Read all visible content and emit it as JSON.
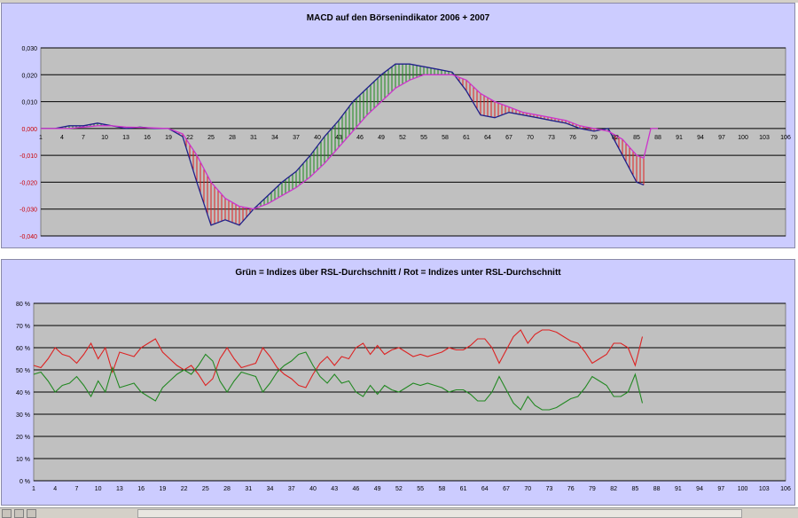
{
  "chart_data": [
    {
      "type": "bar",
      "title": "MACD auf den Börsenindikator 2006 + 2007",
      "x_ticks": [
        "1",
        "4",
        "7",
        "10",
        "13",
        "16",
        "19",
        "22",
        "25",
        "28",
        "31",
        "34",
        "37",
        "40",
        "43",
        "46",
        "49",
        "52",
        "55",
        "58",
        "61",
        "64",
        "67",
        "70",
        "73",
        "76",
        "79",
        "82",
        "85",
        "88",
        "91",
        "94",
        "97",
        "100",
        "103",
        "106"
      ],
      "y_ticks": [
        "0,030",
        "0,020",
        "0,010",
        "0,000",
        "-0,010",
        "-0,020",
        "-0,030",
        "-0,040"
      ],
      "ylim": [
        -0.04,
        0.03
      ],
      "xlim": [
        1,
        106
      ],
      "grid": true,
      "series": [
        {
          "color": "#20208a",
          "x": [
            1,
            3,
            5,
            7,
            9,
            11,
            13,
            15,
            17,
            19,
            21,
            23,
            25,
            27,
            29,
            31,
            33,
            35,
            37,
            39,
            41,
            43,
            45,
            47,
            49,
            51,
            53,
            55,
            57,
            59,
            61,
            63,
            65,
            67,
            69,
            71,
            73,
            75,
            77,
            79,
            81,
            83,
            85,
            86
          ],
          "values": [
            0,
            0,
            0.001,
            0.001,
            0.002,
            0.001,
            0,
            0.0005,
            0,
            0,
            -0.003,
            -0.02,
            -0.036,
            -0.034,
            -0.036,
            -0.03,
            -0.025,
            -0.02,
            -0.016,
            -0.01,
            -0.003,
            0.003,
            0.01,
            0.015,
            0.02,
            0.024,
            0.024,
            0.023,
            0.022,
            0.021,
            0.014,
            0.005,
            0.004,
            0.006,
            0.005,
            0.004,
            0.003,
            0.002,
            0,
            -0.001,
            0,
            -0.01,
            -0.02,
            -0.021
          ]
        },
        {
          "color": "#cc33cc",
          "x": [
            1,
            3,
            5,
            7,
            9,
            11,
            13,
            15,
            17,
            19,
            21,
            23,
            25,
            27,
            29,
            31,
            33,
            35,
            37,
            39,
            41,
            43,
            45,
            47,
            49,
            51,
            53,
            55,
            57,
            59,
            61,
            63,
            65,
            67,
            69,
            71,
            73,
            75,
            77,
            79,
            81,
            83,
            85,
            86,
            87,
            88
          ],
          "values": [
            0,
            0,
            0,
            0.0005,
            0.001,
            0.001,
            0.0005,
            0.0004,
            0.0002,
            0,
            -0.002,
            -0.01,
            -0.02,
            -0.026,
            -0.029,
            -0.03,
            -0.028,
            -0.025,
            -0.022,
            -0.018,
            -0.013,
            -0.007,
            -0.001,
            0.005,
            0.01,
            0.015,
            0.018,
            0.02,
            0.02,
            0.02,
            0.018,
            0.013,
            0.01,
            0.008,
            0.006,
            0.005,
            0.004,
            0.003,
            0.001,
            0,
            -0.001,
            -0.004,
            -0.01,
            -0.011,
            0,
            0
          ]
        }
      ]
    },
    {
      "type": "line",
      "title": "Grün = Indizes über RSL-Durchschnitt / Rot = Indizes unter RSL-Durchschnitt",
      "x_ticks": [
        "1",
        "4",
        "7",
        "10",
        "13",
        "16",
        "19",
        "22",
        "25",
        "28",
        "31",
        "34",
        "37",
        "40",
        "43",
        "46",
        "49",
        "52",
        "55",
        "58",
        "61",
        "64",
        "67",
        "70",
        "73",
        "76",
        "79",
        "82",
        "85",
        "88",
        "91",
        "94",
        "97",
        "100",
        "103",
        "106"
      ],
      "y_ticks": [
        "80 %",
        "70 %",
        "60 %",
        "50 %",
        "40 %",
        "30 %",
        "20 %",
        "10 %",
        "0 %"
      ],
      "ylim": [
        0,
        80
      ],
      "xlim": [
        1,
        106
      ],
      "grid": true,
      "series": [
        {
          "color": "#dd2222",
          "x": [
            1,
            2,
            3,
            4,
            5,
            6,
            7,
            8,
            9,
            10,
            11,
            12,
            13,
            14,
            15,
            16,
            17,
            18,
            19,
            20,
            21,
            22,
            23,
            24,
            25,
            26,
            27,
            28,
            29,
            30,
            31,
            32,
            33,
            34,
            35,
            36,
            37,
            38,
            39,
            40,
            41,
            42,
            43,
            44,
            45,
            46,
            47,
            48,
            49,
            50,
            51,
            52,
            53,
            54,
            55,
            56,
            57,
            58,
            59,
            60,
            61,
            62,
            63,
            64,
            65,
            66,
            67,
            68,
            69,
            70,
            71,
            72,
            73,
            74,
            75,
            76,
            77,
            78,
            79,
            80,
            81,
            82,
            83,
            84,
            85,
            86
          ],
          "values": [
            52,
            51,
            55,
            60,
            57,
            56,
            53,
            57,
            62,
            55,
            60,
            49,
            58,
            57,
            56,
            60,
            62,
            64,
            58,
            55,
            52,
            50,
            52,
            48,
            43,
            46,
            55,
            60,
            55,
            51,
            52,
            53,
            60,
            56,
            51,
            48,
            46,
            43,
            42,
            48,
            53,
            56,
            52,
            56,
            55,
            60,
            62,
            57,
            61,
            57,
            59,
            60,
            58,
            56,
            57,
            56,
            57,
            58,
            60,
            59,
            59,
            61,
            64,
            64,
            60,
            53,
            59,
            65,
            68,
            62,
            66,
            68,
            68,
            67,
            65,
            63,
            62,
            58,
            53,
            55,
            57,
            62,
            62,
            60,
            52,
            65
          ]
        },
        {
          "color": "#228822",
          "x": [
            1,
            2,
            3,
            4,
            5,
            6,
            7,
            8,
            9,
            10,
            11,
            12,
            13,
            14,
            15,
            16,
            17,
            18,
            19,
            20,
            21,
            22,
            23,
            24,
            25,
            26,
            27,
            28,
            29,
            30,
            31,
            32,
            33,
            34,
            35,
            36,
            37,
            38,
            39,
            40,
            41,
            42,
            43,
            44,
            45,
            46,
            47,
            48,
            49,
            50,
            51,
            52,
            53,
            54,
            55,
            56,
            57,
            58,
            59,
            60,
            61,
            62,
            63,
            64,
            65,
            66,
            67,
            68,
            69,
            70,
            71,
            72,
            73,
            74,
            75,
            76,
            77,
            78,
            79,
            80,
            81,
            82,
            83,
            84,
            85,
            86
          ],
          "values": [
            48,
            49,
            45,
            40,
            43,
            44,
            47,
            43,
            38,
            45,
            40,
            51,
            42,
            43,
            44,
            40,
            38,
            36,
            42,
            45,
            48,
            50,
            48,
            52,
            57,
            54,
            45,
            40,
            45,
            49,
            48,
            47,
            40,
            44,
            49,
            52,
            54,
            57,
            58,
            52,
            47,
            44,
            48,
            44,
            45,
            40,
            38,
            43,
            39,
            43,
            41,
            40,
            42,
            44,
            43,
            44,
            43,
            42,
            40,
            41,
            41,
            39,
            36,
            36,
            40,
            47,
            41,
            35,
            32,
            38,
            34,
            32,
            32,
            33,
            35,
            37,
            38,
            42,
            47,
            45,
            43,
            38,
            38,
            40,
            48,
            35
          ]
        }
      ]
    }
  ]
}
